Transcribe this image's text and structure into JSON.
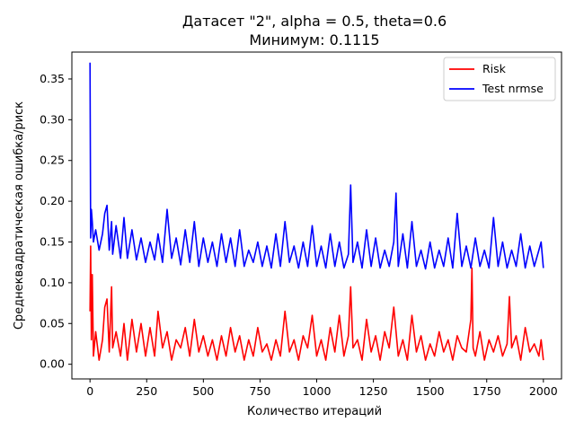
{
  "chart_data": {
    "type": "line",
    "title": "Датасет \"2\", alpha = 0.5, theta=0.6",
    "subtitle": "Минимум: 0.1115",
    "xlabel": "Количество итераций",
    "ylabel": "Среднеквадратическая ошибка/риск",
    "xlim": [
      -80,
      2080
    ],
    "ylim": [
      -0.018,
      0.383
    ],
    "xticks": [
      0,
      250,
      500,
      750,
      1000,
      1250,
      1500,
      1750,
      2000
    ],
    "yticks": [
      0.0,
      0.05,
      0.1,
      0.15,
      0.2,
      0.25,
      0.3,
      0.35
    ],
    "xtick_labels": [
      "0",
      "250",
      "500",
      "750",
      "1000",
      "1250",
      "1500",
      "1750",
      "2000"
    ],
    "ytick_labels": [
      "0.00",
      "0.05",
      "0.10",
      "0.15",
      "0.20",
      "0.25",
      "0.30",
      "0.35"
    ],
    "grid": false,
    "legend_position": "top-right",
    "series": [
      {
        "name": "Risk",
        "color": "#ff0000",
        "x": [
          0,
          3,
          6,
          10,
          15,
          25,
          40,
          55,
          65,
          75,
          85,
          95,
          100,
          115,
          135,
          150,
          165,
          185,
          205,
          225,
          245,
          265,
          285,
          300,
          320,
          340,
          360,
          380,
          400,
          420,
          440,
          460,
          480,
          500,
          520,
          540,
          560,
          580,
          600,
          620,
          640,
          660,
          680,
          700,
          720,
          740,
          760,
          780,
          800,
          820,
          840,
          860,
          880,
          900,
          920,
          940,
          960,
          980,
          1000,
          1020,
          1040,
          1060,
          1080,
          1100,
          1120,
          1140,
          1150,
          1160,
          1180,
          1200,
          1220,
          1240,
          1260,
          1280,
          1300,
          1320,
          1340,
          1360,
          1380,
          1400,
          1420,
          1440,
          1460,
          1480,
          1500,
          1520,
          1540,
          1560,
          1580,
          1600,
          1620,
          1640,
          1660,
          1680,
          1685,
          1690,
          1700,
          1720,
          1740,
          1760,
          1780,
          1800,
          1820,
          1840,
          1850,
          1860,
          1880,
          1900,
          1920,
          1940,
          1960,
          1980,
          1990,
          2000
        ],
        "y": [
          0.065,
          0.145,
          0.03,
          0.11,
          0.01,
          0.04,
          0.005,
          0.03,
          0.07,
          0.08,
          0.015,
          0.095,
          0.02,
          0.04,
          0.01,
          0.05,
          0.005,
          0.055,
          0.015,
          0.05,
          0.01,
          0.045,
          0.01,
          0.065,
          0.02,
          0.04,
          0.005,
          0.03,
          0.02,
          0.045,
          0.01,
          0.055,
          0.015,
          0.035,
          0.01,
          0.03,
          0.005,
          0.035,
          0.01,
          0.045,
          0.015,
          0.035,
          0.005,
          0.03,
          0.01,
          0.045,
          0.015,
          0.025,
          0.005,
          0.03,
          0.01,
          0.065,
          0.015,
          0.03,
          0.005,
          0.035,
          0.02,
          0.06,
          0.01,
          0.03,
          0.005,
          0.045,
          0.015,
          0.06,
          0.01,
          0.035,
          0.095,
          0.02,
          0.03,
          0.005,
          0.055,
          0.015,
          0.035,
          0.005,
          0.04,
          0.02,
          0.07,
          0.01,
          0.03,
          0.005,
          0.06,
          0.015,
          0.035,
          0.005,
          0.025,
          0.01,
          0.04,
          0.015,
          0.03,
          0.005,
          0.035,
          0.02,
          0.015,
          0.055,
          0.118,
          0.02,
          0.01,
          0.04,
          0.005,
          0.03,
          0.015,
          0.035,
          0.01,
          0.025,
          0.083,
          0.02,
          0.035,
          0.005,
          0.045,
          0.015,
          0.025,
          0.01,
          0.03,
          0.005
        ]
      },
      {
        "name": "Test nrmse",
        "color": "#0000ff",
        "x": [
          0,
          3,
          6,
          10,
          15,
          25,
          40,
          55,
          65,
          75,
          85,
          95,
          100,
          115,
          135,
          150,
          165,
          185,
          205,
          225,
          245,
          265,
          285,
          300,
          320,
          340,
          360,
          380,
          400,
          420,
          440,
          460,
          480,
          500,
          520,
          540,
          560,
          580,
          600,
          620,
          640,
          660,
          680,
          700,
          720,
          740,
          760,
          780,
          800,
          820,
          840,
          860,
          880,
          900,
          920,
          940,
          960,
          980,
          1000,
          1020,
          1040,
          1060,
          1080,
          1100,
          1120,
          1140,
          1150,
          1160,
          1180,
          1200,
          1220,
          1240,
          1260,
          1280,
          1300,
          1320,
          1340,
          1350,
          1360,
          1380,
          1400,
          1420,
          1440,
          1460,
          1480,
          1500,
          1520,
          1540,
          1560,
          1580,
          1600,
          1620,
          1640,
          1660,
          1680,
          1700,
          1720,
          1740,
          1760,
          1780,
          1800,
          1820,
          1840,
          1860,
          1880,
          1900,
          1920,
          1940,
          1960,
          1980,
          1990,
          2000
        ],
        "y": [
          0.37,
          0.155,
          0.19,
          0.175,
          0.15,
          0.165,
          0.14,
          0.16,
          0.185,
          0.195,
          0.14,
          0.175,
          0.135,
          0.17,
          0.13,
          0.18,
          0.13,
          0.165,
          0.128,
          0.155,
          0.125,
          0.15,
          0.128,
          0.16,
          0.125,
          0.19,
          0.13,
          0.155,
          0.122,
          0.165,
          0.125,
          0.175,
          0.12,
          0.155,
          0.125,
          0.15,
          0.12,
          0.16,
          0.125,
          0.155,
          0.12,
          0.165,
          0.12,
          0.14,
          0.125,
          0.15,
          0.12,
          0.145,
          0.118,
          0.16,
          0.12,
          0.175,
          0.125,
          0.145,
          0.118,
          0.15,
          0.12,
          0.17,
          0.12,
          0.145,
          0.118,
          0.16,
          0.12,
          0.15,
          0.118,
          0.135,
          0.22,
          0.125,
          0.15,
          0.118,
          0.165,
          0.12,
          0.155,
          0.118,
          0.14,
          0.12,
          0.15,
          0.21,
          0.12,
          0.16,
          0.118,
          0.175,
          0.12,
          0.14,
          0.117,
          0.15,
          0.118,
          0.14,
          0.12,
          0.155,
          0.118,
          0.185,
          0.12,
          0.145,
          0.118,
          0.155,
          0.12,
          0.14,
          0.118,
          0.18,
          0.12,
          0.15,
          0.118,
          0.14,
          0.12,
          0.16,
          0.118,
          0.145,
          0.12,
          0.14,
          0.15,
          0.118
        ]
      }
    ]
  }
}
